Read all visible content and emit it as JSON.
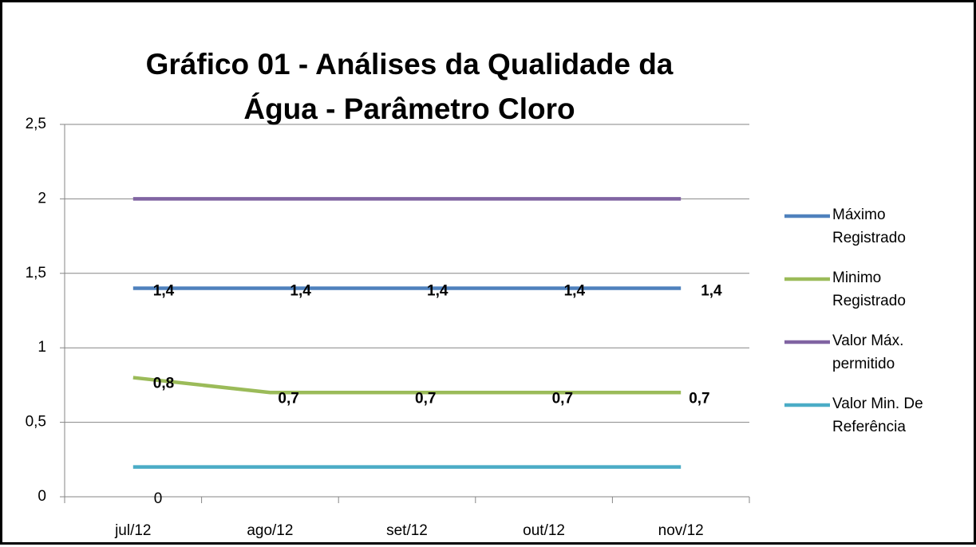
{
  "chart_data": {
    "type": "line",
    "title": "Gráfico  01 -  Análises da Qualidade da Água - Parâmetro Cloro",
    "categories": [
      "jul/12",
      "ago/12",
      "set/12",
      "out/12",
      "nov/12"
    ],
    "series": [
      {
        "name": "Máximo Registrado",
        "color": "#4f81bd",
        "values": [
          1.4,
          1.4,
          1.4,
          1.4,
          1.4
        ],
        "value_labels": [
          "1,4",
          "1,4",
          "1,4",
          "1,4",
          "1,4"
        ]
      },
      {
        "name": "Minimo Registrado",
        "color": "#9bbb59",
        "values": [
          0.8,
          0.7,
          0.7,
          0.7,
          0.7
        ],
        "value_labels": [
          "0,8",
          "0,7",
          "0,7",
          "0,7",
          "0,7"
        ]
      },
      {
        "name": "Valor Máx. permitido",
        "color": "#8064a2",
        "values": [
          2,
          2,
          2,
          2,
          2
        ]
      },
      {
        "name": "Valor Min. De Referência",
        "color": "#4bacc6",
        "values": [
          0.2,
          0.2,
          0.2,
          0.2,
          0.2
        ]
      }
    ],
    "annotations": [
      "0"
    ],
    "ylim": [
      0,
      2.5
    ],
    "yticks": [
      0,
      {
        "value": 0.5,
        "label": "0,5"
      },
      1,
      {
        "value": 1.5,
        "label": "1,5"
      },
      2,
      {
        "value": 2.5,
        "label": "2,5"
      }
    ],
    "grid": true,
    "legend": "right"
  }
}
